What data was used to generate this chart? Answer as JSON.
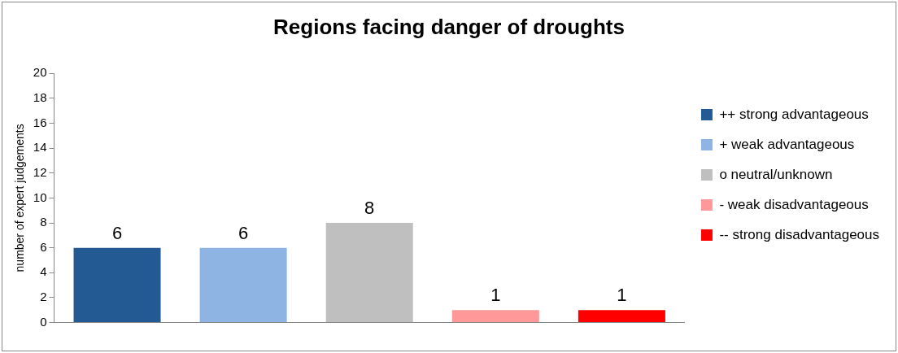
{
  "chart_data": {
    "type": "bar",
    "title": "Regions facing danger of droughts",
    "ylabel": "number of expert judgements",
    "categories": [
      null
    ],
    "series": [
      {
        "name": "++ strong advantageous",
        "color": "#245a93",
        "values": [
          6
        ]
      },
      {
        "name": "+ weak advantageous",
        "color": "#8eb4e3",
        "values": [
          6
        ]
      },
      {
        "name": "o neutral/unknown",
        "color": "#bfbfbf",
        "values": [
          8
        ]
      },
      {
        "name": "- weak disadvantageous",
        "color": "#ff9999",
        "values": [
          1
        ]
      },
      {
        "name": "-- strong disadvantageous",
        "color": "#ff0000",
        "values": [
          1
        ]
      }
    ],
    "ylim": [
      0,
      20
    ],
    "yticks": [
      0,
      2,
      4,
      6,
      8,
      10,
      12,
      14,
      16,
      18,
      20
    ],
    "grid": false,
    "legend": "right",
    "data_labels": true
  }
}
